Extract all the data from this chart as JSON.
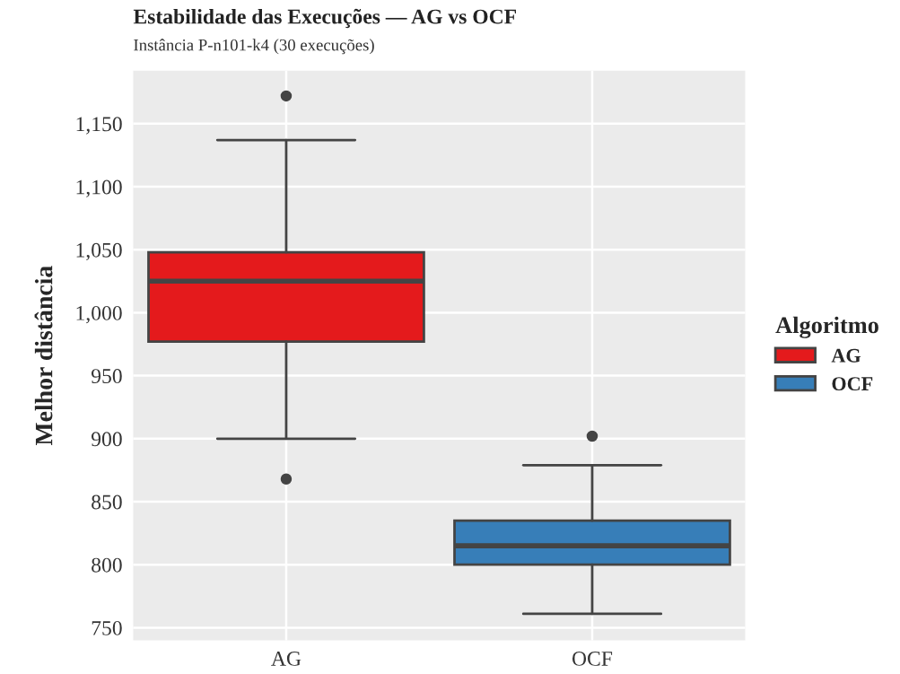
{
  "chart_data": {
    "type": "box",
    "title": "Estabilidade das Execuções — AG vs OCF",
    "subtitle": "Instância P-n101-k4 (30 execuções)",
    "ylabel": "Melhor distância",
    "legend_title": "Algoritmo",
    "categories": [
      "AG",
      "OCF"
    ],
    "series": [
      {
        "name": "AG",
        "color": "#e41a1c",
        "boxes": [
          {
            "low": 900,
            "q1": 977,
            "median": 1025,
            "q3": 1048,
            "high": 1137,
            "outliers": [
              1172,
              868
            ]
          },
          null
        ]
      },
      {
        "name": "OCF",
        "color": "#377eb8",
        "boxes": [
          null,
          {
            "low": 761,
            "q1": 800,
            "median": 815,
            "q3": 835,
            "high": 879,
            "outliers": [
              902
            ]
          }
        ]
      }
    ],
    "ylim": [
      740,
      1192
    ],
    "yticks": [
      750,
      800,
      850,
      900,
      950,
      {
        "value": 1000,
        "label": "1,000"
      },
      {
        "value": 1050,
        "label": "1,050"
      },
      {
        "value": 1100,
        "label": "1,100"
      },
      {
        "value": 1150,
        "label": "1,150"
      }
    ],
    "grid": true,
    "legend": "right"
  }
}
